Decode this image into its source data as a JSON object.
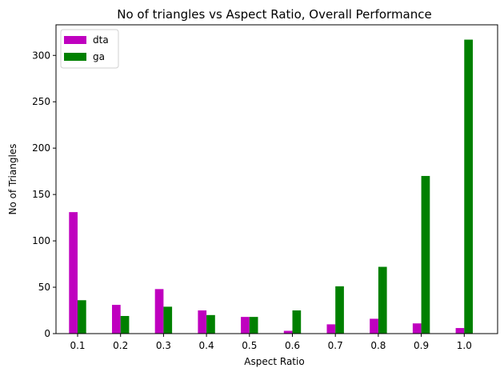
{
  "chart_data": {
    "type": "bar",
    "title": "No of triangles vs Aspect Ratio, Overall Performance",
    "xlabel": "Aspect Ratio",
    "ylabel": "No of Triangles",
    "categories": [
      "0.1",
      "0.2",
      "0.3",
      "0.4",
      "0.5",
      "0.6",
      "0.7",
      "0.8",
      "0.9",
      "1.0"
    ],
    "series": [
      {
        "name": "dta",
        "color": "#bf00bf",
        "values": [
          131,
          31,
          48,
          25,
          18,
          3,
          10,
          16,
          11,
          6
        ]
      },
      {
        "name": "ga",
        "color": "#008000",
        "values": [
          36,
          19,
          29,
          20,
          18,
          25,
          51,
          72,
          170,
          317
        ]
      }
    ],
    "ylim": [
      0,
      333
    ],
    "yticks": [
      0,
      50,
      100,
      150,
      200,
      250,
      300
    ],
    "grid": false,
    "legend_position": "top-left"
  }
}
